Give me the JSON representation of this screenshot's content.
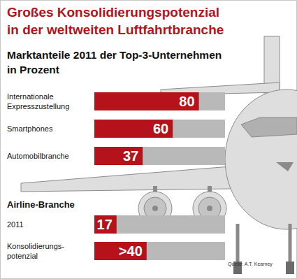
{
  "chart_data": [
    {
      "type": "bar",
      "title": "Großes Konsolidierungspotenzial\nin der weltweiten Luftfahrtbranche",
      "subtitle": "Marktanteile 2011 der Top-3-Unternehmen\nin Prozent",
      "orientation": "horizontal",
      "categories": [
        "Internationale\nExpresszustellung",
        "Smartphones",
        "Automobilbranche"
      ],
      "values": [
        80,
        60,
        37
      ],
      "color": "#b5121b",
      "xlim": [
        0,
        100
      ],
      "data_labels": true,
      "tick_labels": false
    },
    {
      "type": "bar",
      "title": "Airline-Branche",
      "orientation": "horizontal",
      "categories": [
        "2011",
        "Konsolidierungs-\npotenzial"
      ],
      "values": [
        17,
        40
      ],
      "value_labels": [
        "17",
        ">40"
      ],
      "color": "#b5121b",
      "xlim": [
        0,
        100
      ],
      "data_labels": true,
      "tick_labels": false,
      "annotation": "Quelle: A.T. Kearney"
    }
  ]
}
